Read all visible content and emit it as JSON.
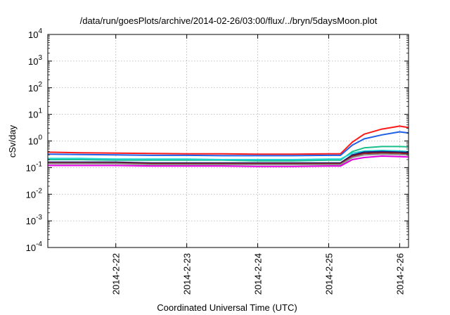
{
  "chart_data": {
    "type": "line",
    "title": "/data/run/goesPlots/archive/2014-02-26/03:00/flux/../bryn/5daysMoon.plot",
    "xlabel": "Coordinated Universal Time (UTC)",
    "ylabel": "cSv/day",
    "yscale": "log",
    "ylim": [
      0.0001,
      10000
    ],
    "y_ticks": [
      {
        "value": 0.0001,
        "base": "10",
        "exp": "-4"
      },
      {
        "value": 0.001,
        "base": "10",
        "exp": "-3"
      },
      {
        "value": 0.01,
        "base": "10",
        "exp": "-2"
      },
      {
        "value": 0.1,
        "base": "10",
        "exp": "-1"
      },
      {
        "value": 1,
        "base": "10",
        "exp": "0"
      },
      {
        "value": 10,
        "base": "10",
        "exp": "1"
      },
      {
        "value": 100,
        "base": "10",
        "exp": "2"
      },
      {
        "value": 1000,
        "base": "10",
        "exp": "3"
      },
      {
        "value": 10000,
        "base": "10",
        "exp": "4"
      }
    ],
    "xlim": [
      "2014-02-21T01:00",
      "2014-02-26T03:00"
    ],
    "x_ticks": [
      "2014-2-22",
      "2014-2-23",
      "2014-2-24",
      "2014-2-25",
      "2014-2-26"
    ],
    "grid": true,
    "legend": "none",
    "colors": {
      "red": "#ff1a1a",
      "blue": "#1f5fe6",
      "green": "#18c08a",
      "cyan": "#22d4d4",
      "navy": "#1a1a7a",
      "darkred": "#8b1a1a",
      "gray": "#8c8c8c",
      "magenta": "#e000e0"
    },
    "series": [
      {
        "color": "red",
        "x": [
          "2014-02-21T01:00",
          "2014-02-21T12:00",
          "2014-02-22T00:00",
          "2014-02-22T12:00",
          "2014-02-23T00:00",
          "2014-02-23T12:00",
          "2014-02-24T00:00",
          "2014-02-24T12:00",
          "2014-02-25T00:00",
          "2014-02-25T04:00",
          "2014-02-25T08:00",
          "2014-02-25T12:00",
          "2014-02-25T18:00",
          "2014-02-26T00:00",
          "2014-02-26T03:00"
        ],
        "values": [
          0.38,
          0.36,
          0.35,
          0.34,
          0.33,
          0.33,
          0.32,
          0.32,
          0.33,
          0.33,
          0.9,
          1.8,
          2.8,
          3.6,
          3.2
        ]
      },
      {
        "color": "blue",
        "x": [
          "2014-02-21T01:00",
          "2014-02-21T12:00",
          "2014-02-22T00:00",
          "2014-02-22T12:00",
          "2014-02-23T00:00",
          "2014-02-23T12:00",
          "2014-02-24T00:00",
          "2014-02-24T12:00",
          "2014-02-25T00:00",
          "2014-02-25T04:00",
          "2014-02-25T08:00",
          "2014-02-25T12:00",
          "2014-02-25T18:00",
          "2014-02-26T00:00",
          "2014-02-26T03:00"
        ],
        "values": [
          0.32,
          0.31,
          0.3,
          0.29,
          0.29,
          0.28,
          0.28,
          0.28,
          0.29,
          0.29,
          0.7,
          1.2,
          1.7,
          2.2,
          2.0
        ]
      },
      {
        "color": "green",
        "x": [
          "2014-02-21T01:00",
          "2014-02-21T12:00",
          "2014-02-22T00:00",
          "2014-02-22T12:00",
          "2014-02-23T00:00",
          "2014-02-23T12:00",
          "2014-02-24T00:00",
          "2014-02-24T12:00",
          "2014-02-25T00:00",
          "2014-02-25T04:00",
          "2014-02-25T08:00",
          "2014-02-25T12:00",
          "2014-02-25T18:00",
          "2014-02-26T00:00",
          "2014-02-26T03:00"
        ],
        "values": [
          0.2,
          0.2,
          0.19,
          0.19,
          0.19,
          0.19,
          0.18,
          0.18,
          0.19,
          0.19,
          0.4,
          0.55,
          0.62,
          0.62,
          0.6
        ]
      },
      {
        "color": "cyan",
        "x": [
          "2014-02-21T01:00",
          "2014-02-21T12:00",
          "2014-02-22T00:00",
          "2014-02-22T12:00",
          "2014-02-23T00:00",
          "2014-02-23T12:00",
          "2014-02-24T00:00",
          "2014-02-24T12:00",
          "2014-02-25T00:00",
          "2014-02-25T04:00",
          "2014-02-25T08:00",
          "2014-02-25T12:00",
          "2014-02-25T18:00",
          "2014-02-26T00:00",
          "2014-02-26T03:00"
        ],
        "values": [
          0.22,
          0.22,
          0.21,
          0.21,
          0.21,
          0.2,
          0.2,
          0.2,
          0.21,
          0.21,
          0.35,
          0.42,
          0.44,
          0.42,
          0.4
        ]
      },
      {
        "color": "navy",
        "x": [
          "2014-02-21T01:00",
          "2014-02-21T12:00",
          "2014-02-22T00:00",
          "2014-02-22T12:00",
          "2014-02-23T00:00",
          "2014-02-23T12:00",
          "2014-02-24T00:00",
          "2014-02-24T12:00",
          "2014-02-25T00:00",
          "2014-02-25T04:00",
          "2014-02-25T08:00",
          "2014-02-25T12:00",
          "2014-02-25T18:00",
          "2014-02-26T00:00",
          "2014-02-26T03:00"
        ],
        "values": [
          0.16,
          0.16,
          0.16,
          0.15,
          0.15,
          0.15,
          0.15,
          0.15,
          0.15,
          0.15,
          0.3,
          0.38,
          0.4,
          0.38,
          0.37
        ]
      },
      {
        "color": "darkred",
        "x": [
          "2014-02-21T01:00",
          "2014-02-21T12:00",
          "2014-02-22T00:00",
          "2014-02-22T12:00",
          "2014-02-23T00:00",
          "2014-02-23T12:00",
          "2014-02-24T00:00",
          "2014-02-24T12:00",
          "2014-02-25T00:00",
          "2014-02-25T04:00",
          "2014-02-25T08:00",
          "2014-02-25T12:00",
          "2014-02-25T18:00",
          "2014-02-26T00:00",
          "2014-02-26T03:00"
        ],
        "values": [
          0.15,
          0.15,
          0.15,
          0.14,
          0.14,
          0.14,
          0.14,
          0.14,
          0.14,
          0.14,
          0.27,
          0.34,
          0.36,
          0.35,
          0.33
        ]
      },
      {
        "color": "gray",
        "x": [
          "2014-02-21T01:00",
          "2014-02-21T12:00",
          "2014-02-22T00:00",
          "2014-02-22T12:00",
          "2014-02-23T00:00",
          "2014-02-23T12:00",
          "2014-02-24T00:00",
          "2014-02-24T12:00",
          "2014-02-25T00:00",
          "2014-02-25T04:00",
          "2014-02-25T08:00",
          "2014-02-25T12:00",
          "2014-02-25T18:00",
          "2014-02-26T00:00",
          "2014-02-26T03:00"
        ],
        "values": [
          0.14,
          0.14,
          0.14,
          0.13,
          0.13,
          0.13,
          0.13,
          0.13,
          0.13,
          0.13,
          0.24,
          0.3,
          0.32,
          0.31,
          0.3
        ]
      },
      {
        "color": "magenta",
        "x": [
          "2014-02-21T01:00",
          "2014-02-21T12:00",
          "2014-02-22T00:00",
          "2014-02-22T12:00",
          "2014-02-23T00:00",
          "2014-02-23T12:00",
          "2014-02-24T00:00",
          "2014-02-24T12:00",
          "2014-02-25T00:00",
          "2014-02-25T04:00",
          "2014-02-25T08:00",
          "2014-02-25T12:00",
          "2014-02-25T18:00",
          "2014-02-26T00:00",
          "2014-02-26T03:00"
        ],
        "values": [
          0.12,
          0.12,
          0.12,
          0.115,
          0.115,
          0.115,
          0.11,
          0.11,
          0.115,
          0.115,
          0.2,
          0.24,
          0.27,
          0.26,
          0.25
        ]
      }
    ]
  }
}
